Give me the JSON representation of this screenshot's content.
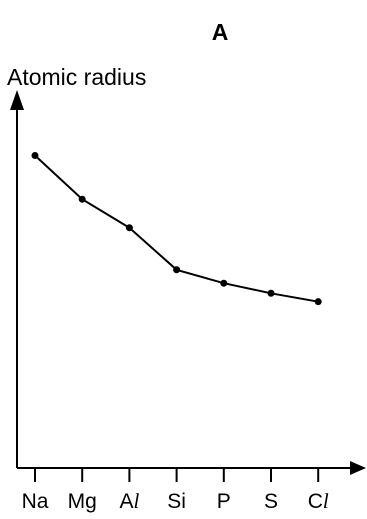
{
  "chart_data": {
    "type": "line",
    "title": "A",
    "ylabel": "Atomic radius",
    "xlabel": "",
    "categories": [
      {
        "base": "Na",
        "italic": ""
      },
      {
        "base": "Mg",
        "italic": ""
      },
      {
        "base": "A",
        "italic": "l"
      },
      {
        "base": "Si",
        "italic": ""
      },
      {
        "base": "P",
        "italic": ""
      },
      {
        "base": "S",
        "italic": ""
      },
      {
        "base": "C",
        "italic": "l"
      }
    ],
    "series": [
      {
        "values": [
          186,
          160,
          143,
          118,
          110,
          104,
          99
        ]
      }
    ],
    "ylim": [
      0,
      225
    ],
    "y_ticks_shown": false,
    "grid": false,
    "legend": "none",
    "colors": {
      "line": "#000000",
      "markers": "#000000",
      "axes": "#000000"
    }
  }
}
